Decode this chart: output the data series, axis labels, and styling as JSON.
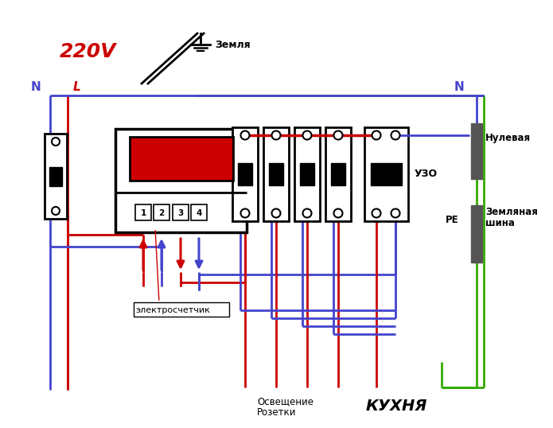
{
  "bg_color": "#ffffff",
  "text_220V": "220V",
  "text_N_left": "N",
  "text_L": "L",
  "text_zemlya": "Земля",
  "text_N_right": "N",
  "text_nulevaya": "Нулевая",
  "text_zemlyaya_shina_1": "Земляная",
  "text_zemlyaya_shina_2": "шина",
  "text_PE": "PE",
  "text_UZO": "УЗО",
  "text_electro": "электросчетчик",
  "text_osvesh": "Освещение\nРозетки",
  "text_kukhnya": "КУХНЯ",
  "color_red": "#cc0000",
  "color_blue": "#4444cc",
  "color_green": "#33aa00",
  "color_black": "#000000",
  "color_darkred": "#aa0000"
}
